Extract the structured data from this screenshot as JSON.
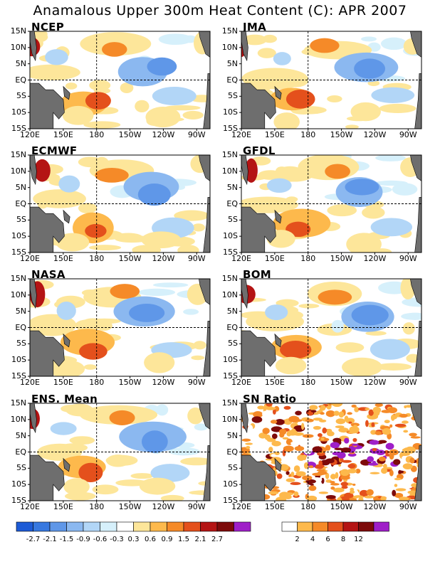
{
  "title": "Anamalous Upper 300m Heat Content (C): APR 2007",
  "lat_labels": [
    "15N",
    "10N",
    "5N",
    "EQ",
    "5S",
    "10S",
    "15S"
  ],
  "lon_labels": [
    "120E",
    "150E",
    "180",
    "150W",
    "120W",
    "90W"
  ],
  "panels": [
    {
      "name": "NCEP"
    },
    {
      "name": "JMA"
    },
    {
      "name": "ECMWF"
    },
    {
      "name": "GFDL"
    },
    {
      "name": "NASA"
    },
    {
      "name": "BOM"
    },
    {
      "name": "ENS. Mean"
    },
    {
      "name": "SN Ratio"
    }
  ],
  "legend_anomaly": {
    "labels": [
      "-2.7",
      "-2.1",
      "-1.5",
      "-0.9",
      "-0.6",
      "-0.3",
      "0.3",
      "0.6",
      "0.9",
      "1.5",
      "2.1",
      "2.7"
    ],
    "colors": [
      "#1d5bd6",
      "#3778e0",
      "#5f97e8",
      "#8bb8f0",
      "#b2d6f7",
      "#d6f0fb",
      "#ffffff",
      "#fde69a",
      "#fdb94c",
      "#f58a28",
      "#e4501c",
      "#b41414",
      "#7d0a0a",
      "#9f1fc8"
    ]
  },
  "legend_snr": {
    "labels": [
      "2",
      "4",
      "6",
      "8",
      "12"
    ],
    "colors": [
      "#ffffff",
      "#fdb94c",
      "#f58a28",
      "#e4501c",
      "#b41414",
      "#7d0a0a",
      "#9f1fc8"
    ]
  },
  "colors": {
    "land": "#6e6e6e",
    "frame": "#000000"
  }
}
